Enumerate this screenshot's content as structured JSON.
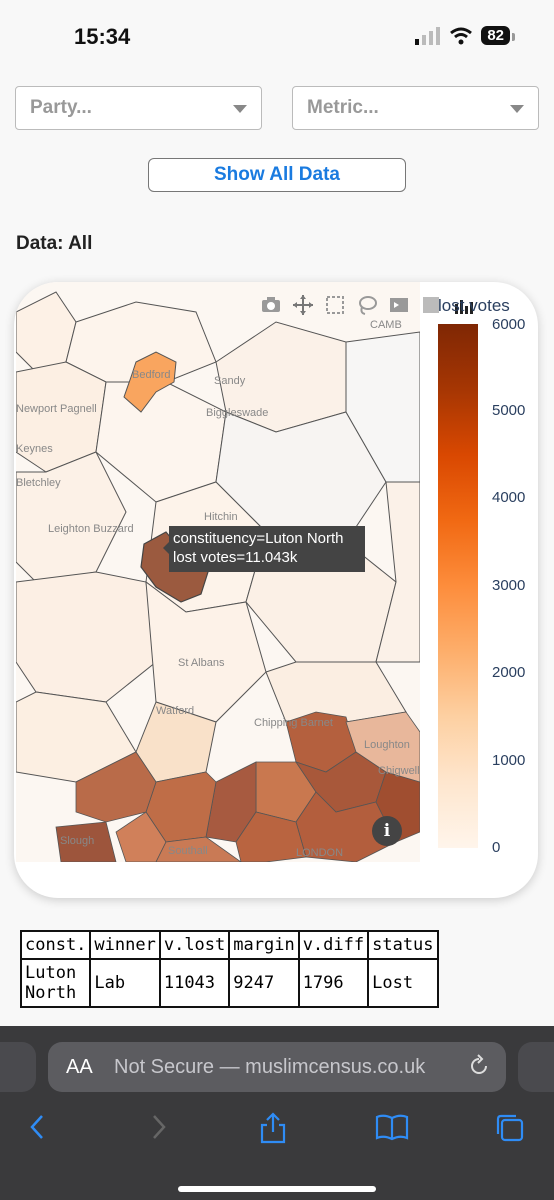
{
  "status_bar": {
    "time": "15:34",
    "battery": "82"
  },
  "filters": {
    "party_placeholder": "Party...",
    "metric_placeholder": "Metric..."
  },
  "show_all_label": "Show All Data",
  "data_label": "Data: All",
  "map": {
    "place_labels": [
      "Bedford",
      "Sandy",
      "Biggleswade",
      "Newport Pagnell",
      "Keynes",
      "Bletchley",
      "Leighton Buzzard",
      "Hitchin",
      "St Albans",
      "Watford",
      "Chipping Barnet",
      "Loughton",
      "Chigwell",
      "Slough",
      "Southall",
      "LONDON",
      "CAMB"
    ],
    "colorbar": {
      "title": "lost votes",
      "ticks": [
        "6000",
        "5000",
        "4000",
        "3000",
        "2000",
        "1000",
        "0"
      ],
      "colors": [
        "#7f2704",
        "#fff5eb"
      ]
    },
    "hover": {
      "line1": "constituency=Luton North",
      "line2": "lost votes=11.043k"
    },
    "toolbar_icons": [
      "camera-icon",
      "pan-icon",
      "box-select-icon",
      "lasso-icon",
      "autoscale-icon",
      "reset-icon",
      "plotly-logo-icon"
    ],
    "info_icon": "i"
  },
  "table": {
    "headers": [
      "const.",
      "winner",
      "v.lost",
      "margin",
      "v.diff",
      "status"
    ],
    "rows": [
      {
        "const_line1": "Luton",
        "const_line2": "North",
        "winner": "Lab",
        "v_lost": "11043",
        "margin": "9247",
        "v_diff": "1796",
        "status": "Lost"
      }
    ]
  },
  "safari": {
    "aa": "AA",
    "url": "Not Secure — muslimcensus.co.uk"
  }
}
